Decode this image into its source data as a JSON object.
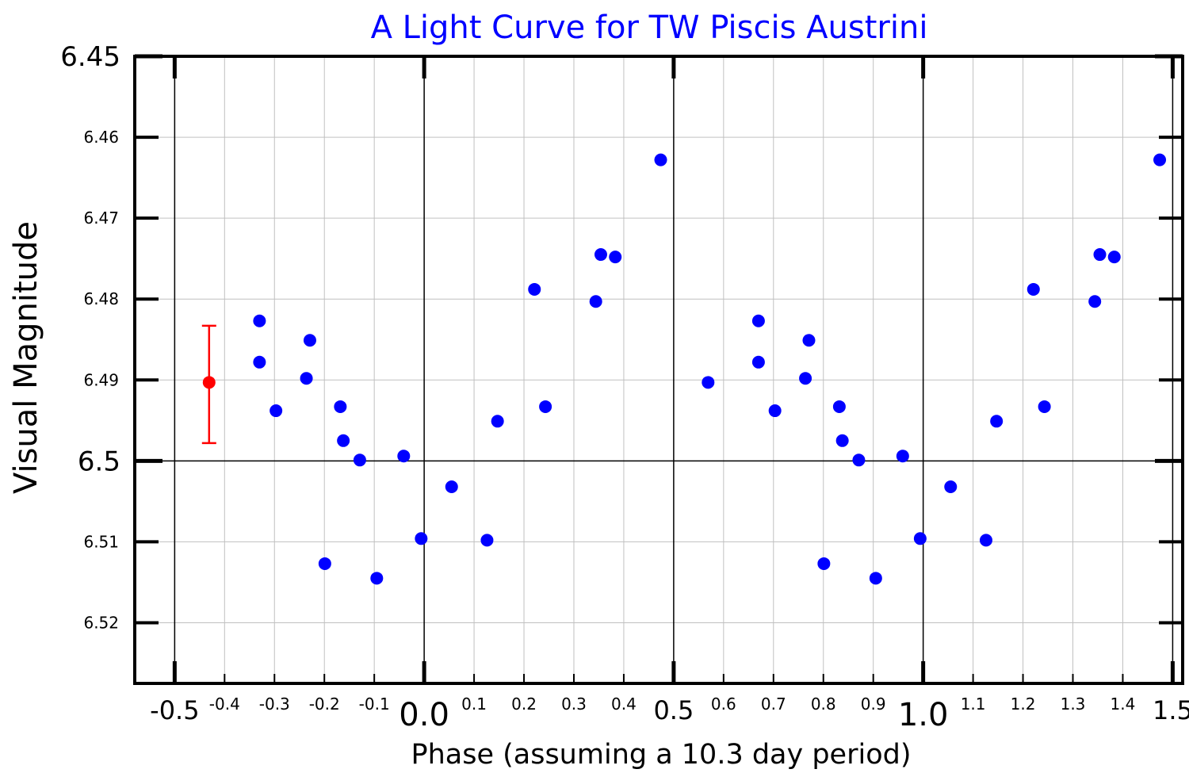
{
  "chart_data": {
    "type": "scatter",
    "title": "A Light Curve for TW Piscis Austrini",
    "xlabel": "Phase (assuming a 10.3 day period)",
    "ylabel": "Visual Magnitude",
    "xlim": [
      -0.58,
      1.52
    ],
    "ylim": [
      6.45,
      6.5275
    ],
    "y_inverted": true,
    "grid": true,
    "x_major_ticks": [
      {
        "value": -0.5,
        "label": "-0.5"
      },
      {
        "value": 0.0,
        "label": "0.0"
      },
      {
        "value": 0.5,
        "label": "0.5"
      },
      {
        "value": 1.0,
        "label": "1.0"
      },
      {
        "value": 1.5,
        "label": "1.5"
      }
    ],
    "x_minor_ticks": [
      {
        "value": -0.4,
        "label": "-0.4"
      },
      {
        "value": -0.3,
        "label": "-0.3"
      },
      {
        "value": -0.2,
        "label": "-0.2"
      },
      {
        "value": -0.1,
        "label": "-0.1"
      },
      {
        "value": 0.1,
        "label": "0.1"
      },
      {
        "value": 0.2,
        "label": "0.2"
      },
      {
        "value": 0.3,
        "label": "0.3"
      },
      {
        "value": 0.4,
        "label": "0.4"
      },
      {
        "value": 0.6,
        "label": "0.6"
      },
      {
        "value": 0.7,
        "label": "0.7"
      },
      {
        "value": 0.8,
        "label": "0.8"
      },
      {
        "value": 0.9,
        "label": "0.9"
      },
      {
        "value": 1.1,
        "label": "1.1"
      },
      {
        "value": 1.2,
        "label": "1.2"
      },
      {
        "value": 1.3,
        "label": "1.3"
      },
      {
        "value": 1.4,
        "label": "1.4"
      }
    ],
    "y_major_ticks": [
      {
        "value": 6.45,
        "label": "6.45"
      },
      {
        "value": 6.5,
        "label": "6.5"
      }
    ],
    "y_minor_ticks": [
      {
        "value": 6.46,
        "label": "6.46"
      },
      {
        "value": 6.47,
        "label": "6.47"
      },
      {
        "value": 6.48,
        "label": "6.48"
      },
      {
        "value": 6.49,
        "label": "6.49"
      },
      {
        "value": 6.51,
        "label": "6.51"
      },
      {
        "value": 6.52,
        "label": "6.52"
      }
    ],
    "series": [
      {
        "color": "#0000ff",
        "points": [
          {
            "x": -0.33,
            "y": 6.4827
          },
          {
            "x": -0.33,
            "y": 6.4878
          },
          {
            "x": -0.297,
            "y": 6.4938
          },
          {
            "x": -0.236,
            "y": 6.4898
          },
          {
            "x": -0.229,
            "y": 6.4851
          },
          {
            "x": -0.199,
            "y": 6.5127
          },
          {
            "x": -0.168,
            "y": 6.4933
          },
          {
            "x": -0.162,
            "y": 6.4975
          },
          {
            "x": -0.129,
            "y": 6.4999
          },
          {
            "x": -0.095,
            "y": 6.5145
          },
          {
            "x": -0.041,
            "y": 6.4994
          },
          {
            "x": -0.006,
            "y": 6.5096
          },
          {
            "x": 0.055,
            "y": 6.5032
          },
          {
            "x": 0.126,
            "y": 6.5098
          },
          {
            "x": 0.147,
            "y": 6.4951
          },
          {
            "x": 0.221,
            "y": 6.4788
          },
          {
            "x": 0.243,
            "y": 6.4933
          },
          {
            "x": 0.344,
            "y": 6.4803
          },
          {
            "x": 0.354,
            "y": 6.4745
          },
          {
            "x": 0.383,
            "y": 6.4748
          },
          {
            "x": 0.474,
            "y": 6.4628
          },
          {
            "x": 0.569,
            "y": 6.4903
          },
          {
            "x": 0.67,
            "y": 6.4827
          },
          {
            "x": 0.67,
            "y": 6.4878
          },
          {
            "x": 0.703,
            "y": 6.4938
          },
          {
            "x": 0.764,
            "y": 6.4898
          },
          {
            "x": 0.771,
            "y": 6.4851
          },
          {
            "x": 0.801,
            "y": 6.5127
          },
          {
            "x": 0.832,
            "y": 6.4933
          },
          {
            "x": 0.838,
            "y": 6.4975
          },
          {
            "x": 0.871,
            "y": 6.4999
          },
          {
            "x": 0.905,
            "y": 6.5145
          },
          {
            "x": 0.959,
            "y": 6.4994
          },
          {
            "x": 0.994,
            "y": 6.5096
          },
          {
            "x": 1.055,
            "y": 6.5032
          },
          {
            "x": 1.126,
            "y": 6.5098
          },
          {
            "x": 1.147,
            "y": 6.4951
          },
          {
            "x": 1.221,
            "y": 6.4788
          },
          {
            "x": 1.243,
            "y": 6.4933
          },
          {
            "x": 1.344,
            "y": 6.4803
          },
          {
            "x": 1.354,
            "y": 6.4745
          },
          {
            "x": 1.383,
            "y": 6.4748
          },
          {
            "x": 1.474,
            "y": 6.4628
          }
        ]
      }
    ],
    "error_bar": {
      "x": -0.431,
      "y": 6.4903,
      "ylow": 6.4833,
      "yhigh": 6.4978,
      "color": "#ff0000"
    }
  }
}
